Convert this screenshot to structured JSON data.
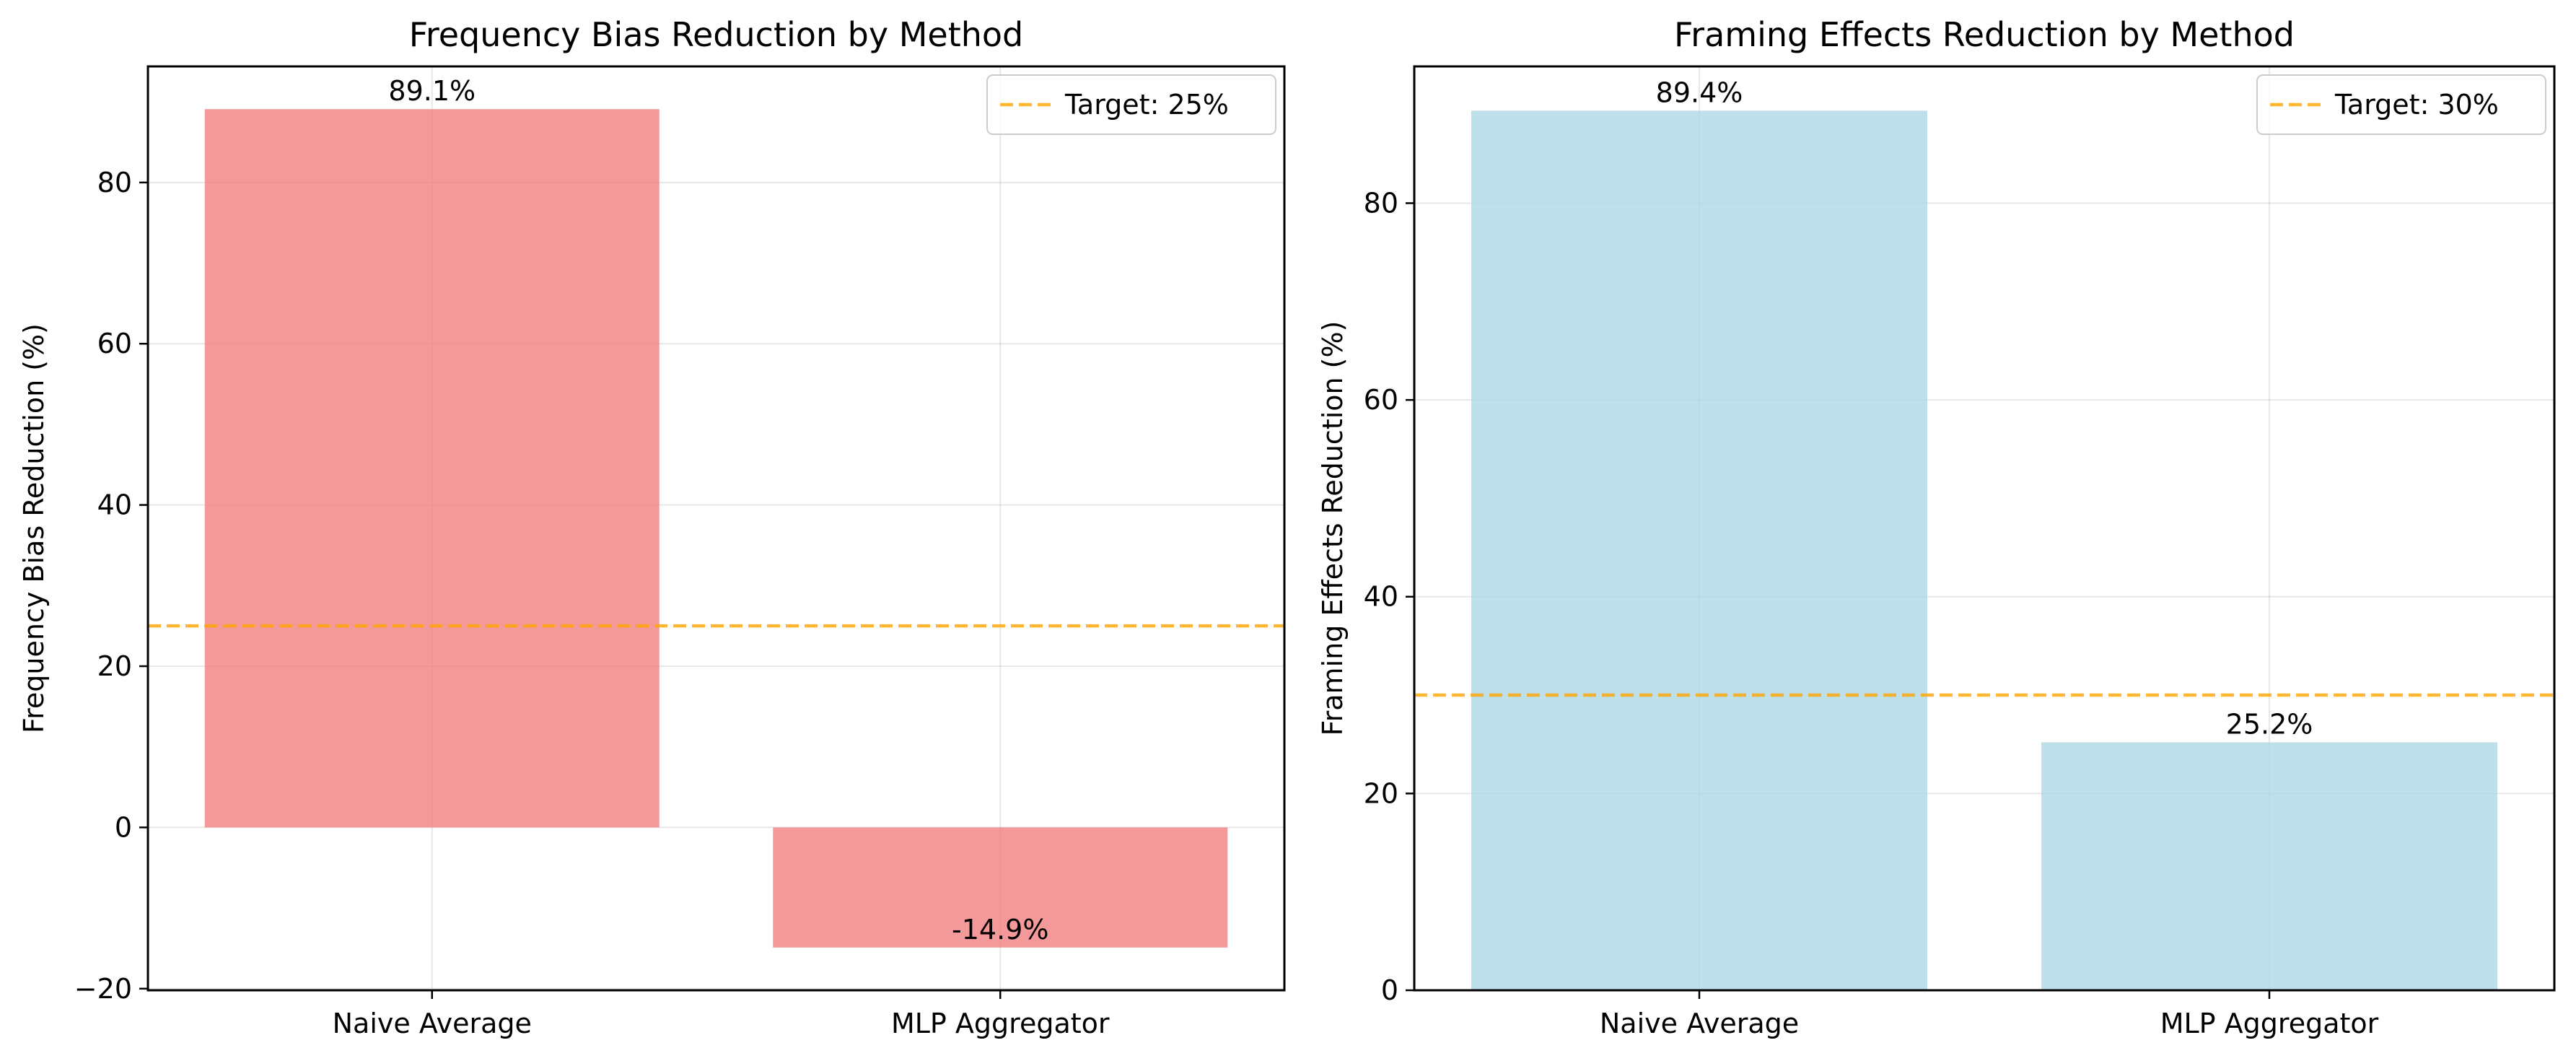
{
  "chart_data": [
    {
      "type": "bar",
      "title": "Frequency Bias Reduction by Method",
      "xlabel": "",
      "ylabel": "Frequency Bias Reduction (%)",
      "categories": [
        "Naive Average",
        "MLP Aggregator"
      ],
      "values": [
        89.1,
        -14.9
      ],
      "data_labels": [
        "89.1%",
        "-14.9%"
      ],
      "ylim": [
        -20.2,
        94.4
      ],
      "yticks": [
        -20,
        0,
        20,
        40,
        60,
        80
      ],
      "ytick_labels": [
        "−20",
        "0",
        "20",
        "40",
        "60",
        "80"
      ],
      "bar_color": "#f08080",
      "target": {
        "value": 25,
        "label": "Target: 25%",
        "color": "#ffa500"
      },
      "grid": true,
      "legend_position": "top-right"
    },
    {
      "type": "bar",
      "title": "Framing Effects Reduction by Method",
      "xlabel": "",
      "ylabel": "Framing Effects Reduction (%)",
      "categories": [
        "Naive Average",
        "MLP Aggregator"
      ],
      "values": [
        89.4,
        25.2
      ],
      "data_labels": [
        "89.4%",
        "25.2%"
      ],
      "ylim": [
        0,
        93.9
      ],
      "yticks": [
        0,
        20,
        40,
        60,
        80
      ],
      "ytick_labels": [
        "0",
        "20",
        "40",
        "60",
        "80"
      ],
      "bar_color": "#add8e6",
      "target": {
        "value": 30,
        "label": "Target: 30%",
        "color": "#ffa500"
      },
      "grid": true,
      "legend_position": "top-right"
    }
  ]
}
